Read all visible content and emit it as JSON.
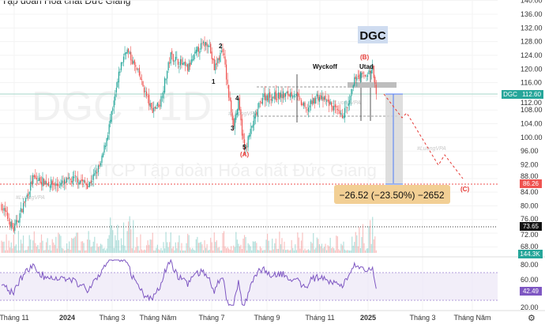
{
  "header": {
    "title": "Tập đoàn Hoá chất Đức Giang"
  },
  "watermark": {
    "symbol": "DGC · 1D",
    "company": "CTCP Tập đoàn Hóa chất Đức Giang",
    "brand": "#LuongVPA"
  },
  "colors": {
    "up": "#26a69a",
    "down": "#ef5350",
    "rsi": "#7e57c2",
    "projection": "#e53935"
  },
  "chart_data": {
    "type": "candlestick",
    "symbol": "DGC",
    "price_keypoints": [
      [
        0,
        80
      ],
      [
        10,
        73
      ],
      [
        20,
        82
      ],
      [
        26,
        88
      ],
      [
        46,
        86
      ],
      [
        62,
        88
      ],
      [
        72,
        86
      ],
      [
        82,
        92
      ],
      [
        92,
        108
      ],
      [
        98,
        120
      ],
      [
        103,
        126
      ],
      [
        114,
        118
      ],
      [
        124,
        108
      ],
      [
        131,
        110
      ],
      [
        140,
        124
      ],
      [
        154,
        120
      ],
      [
        163,
        126
      ],
      [
        171,
        128
      ],
      [
        176,
        120
      ],
      [
        183,
        126
      ],
      [
        188,
        112
      ],
      [
        192,
        104
      ],
      [
        196,
        110
      ],
      [
        201,
        96
      ],
      [
        208,
        104
      ],
      [
        216,
        112
      ],
      [
        229,
        112
      ],
      [
        242,
        113
      ],
      [
        252,
        108
      ],
      [
        261,
        112
      ],
      [
        271,
        110
      ],
      [
        281,
        106
      ],
      [
        288,
        110
      ],
      [
        293,
        118
      ],
      [
        301,
        118
      ],
      [
        307,
        120
      ],
      [
        310,
        112.6
      ]
    ],
    "y_ticks": [
      "140.00",
      "136.00",
      "132.00",
      "128.00",
      "124.00",
      "120.00",
      "116.00",
      "112.00",
      "108.00",
      "104.00",
      "100.00",
      "96.00",
      "92.00",
      "88.00",
      "84.00",
      "80.00",
      "76.00",
      "72.00",
      "68.00"
    ],
    "y_tick_values": [
      140,
      136,
      132,
      128,
      124,
      120,
      116,
      112,
      108,
      104,
      100,
      96,
      92,
      88,
      84,
      80,
      76,
      72,
      68
    ],
    "x_ticks": [
      "Tháng 11",
      "2024",
      "Tháng 3",
      "Tháng Năm",
      "Tháng 7",
      "Tháng 9",
      "Tháng 11",
      "2025",
      "Tháng 3",
      "Tháng Năm"
    ],
    "last_price": {
      "label": "DGC",
      "value": "112.60"
    },
    "target_level": "86.26",
    "support_level": "73.65",
    "volume_last": "144.3K",
    "rsi": {
      "ticks": [
        "80.00",
        "60.00",
        "20.00"
      ],
      "last": "42.49",
      "upper": 70,
      "lower": 30
    },
    "annotations": {
      "w1": "1",
      "w2": "2",
      "w3": "3",
      "w4": "4",
      "w5": "5",
      "A": "(A)",
      "B": "(B)",
      "C": "(C)",
      "utad": "Utad",
      "wyckoff": "Wyckoff",
      "ticker_box": "DGC"
    },
    "measurement": "−26.52 (−23.50%) −2652"
  },
  "settings_icon": "gear-icon"
}
